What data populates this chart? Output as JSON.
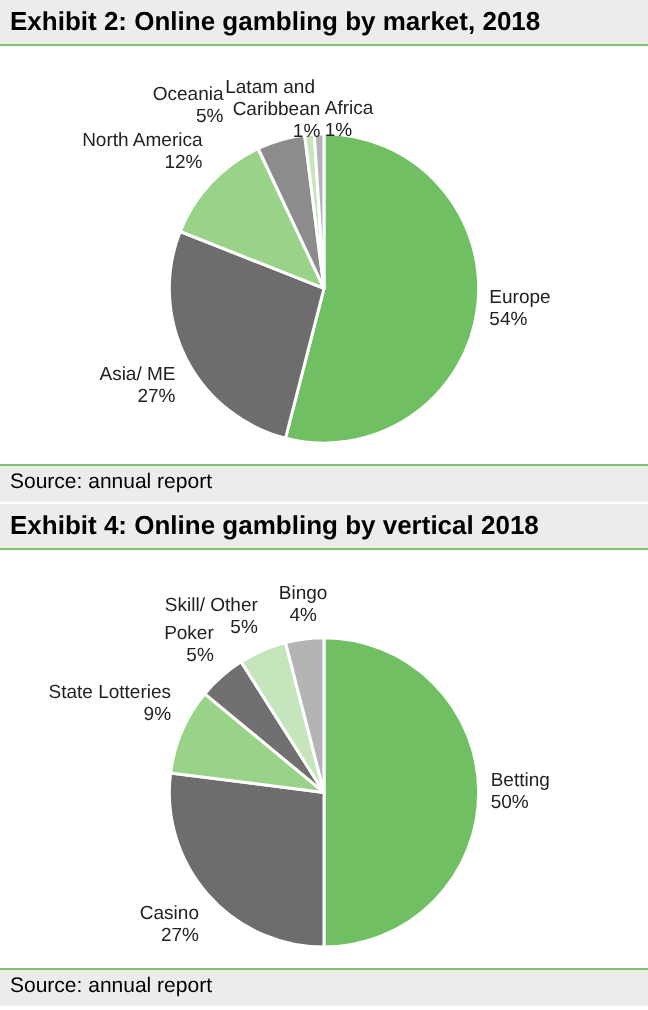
{
  "chart_data": [
    {
      "type": "pie",
      "title": "Exhibit 2: Online gambling by market, 2018",
      "categories": [
        "Europe",
        "Asia/ ME",
        "North America",
        "Oceania",
        "Latam and Caribbean",
        "Africa"
      ],
      "values": [
        54,
        27,
        12,
        5,
        1,
        1
      ],
      "value_labels": [
        "54%",
        "27%",
        "12%",
        "5%",
        "1%",
        "1%"
      ],
      "colors": [
        "#70bf62",
        "#6d6d6d",
        "#99d38a",
        "#8c8c8c",
        "#c5e6bc",
        "#b4b4b4"
      ],
      "annotations": [
        "Source: annual report"
      ],
      "legend": false
    },
    {
      "type": "pie",
      "title": "Exhibit 4: Online gambling by vertical 2018",
      "categories": [
        "Betting",
        "Casino",
        "State Lotteries",
        "Poker",
        "Skill/ Other",
        "Bingo"
      ],
      "values": [
        50,
        27,
        9,
        5,
        5,
        4
      ],
      "value_labels": [
        "50%",
        "27%",
        "9%",
        "5%",
        "5%",
        "4%"
      ],
      "colors": [
        "#70bf62",
        "#6d6d6d",
        "#99d38a",
        "#707070",
        "#c5e6bc",
        "#b4b4b4"
      ],
      "annotations": [
        "Source: annual report"
      ],
      "legend": false
    }
  ]
}
